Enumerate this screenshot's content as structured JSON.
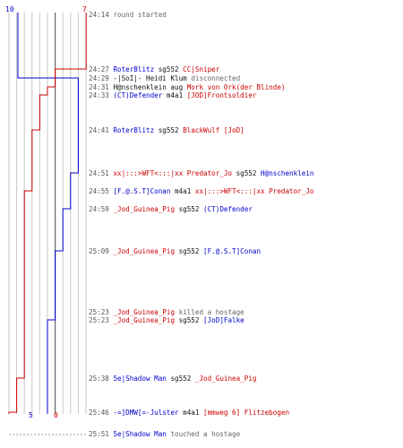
{
  "colors": {
    "blue_team": "#0000cc",
    "red_team": "#cc0000",
    "text": "#111111",
    "muted": "#666666"
  },
  "scores": {
    "blue_top": "10",
    "red_top": "7",
    "blue_bottom": "5",
    "red_bottom": "0"
  },
  "events": [
    {
      "time": "24:14",
      "parts": [
        {
          "text": "round started",
          "color": "muted"
        }
      ]
    },
    {
      "time": "24:27",
      "parts": [
        {
          "text": "RoterBlitz",
          "color": "blue"
        },
        {
          "text": " sg552 ",
          "color": "text"
        },
        {
          "text": "CC|Sniper",
          "color": "red"
        }
      ]
    },
    {
      "time": "24:29",
      "parts": [
        {
          "text": "-|SoI|- Heidi Klum",
          "color": "text"
        },
        {
          "text": " disconnected",
          "color": "muted"
        }
      ]
    },
    {
      "time": "24:31",
      "parts": [
        {
          "text": "H@nschenklein",
          "color": "text"
        },
        {
          "text": " aug ",
          "color": "text"
        },
        {
          "text": "Mork von Ork(der Blinde)",
          "color": "red"
        }
      ]
    },
    {
      "time": "24:33",
      "parts": [
        {
          "text": "(CT)Defender",
          "color": "blue"
        },
        {
          "text": " m4a1 ",
          "color": "text"
        },
        {
          "text": "[JOD]Frontsoldier",
          "color": "red"
        }
      ]
    },
    {
      "time": "24:41",
      "parts": [
        {
          "text": "RoterBlitz",
          "color": "blue"
        },
        {
          "text": " sg552 ",
          "color": "text"
        },
        {
          "text": "BlackWulf [JoD]",
          "color": "red"
        }
      ]
    },
    {
      "time": "24:51",
      "parts": [
        {
          "text": "xx|:::>WFT<:::|xx Predator_Jo",
          "color": "red"
        },
        {
          "text": " sg552 ",
          "color": "text"
        },
        {
          "text": "H@nschenklein",
          "color": "blue"
        }
      ]
    },
    {
      "time": "24:55",
      "parts": [
        {
          "text": "[F.@.S.T]Conan",
          "color": "blue"
        },
        {
          "text": " m4a1 ",
          "color": "text"
        },
        {
          "text": "xx|:::>WFT<:::|xx Predator_Jo",
          "color": "red"
        }
      ]
    },
    {
      "time": "24:59",
      "parts": [
        {
          "text": "_Jod_Guinea_Pig",
          "color": "red"
        },
        {
          "text": " sg552 ",
          "color": "text"
        },
        {
          "text": "(CT)Defender",
          "color": "blue"
        }
      ]
    },
    {
      "time": "25:09",
      "parts": [
        {
          "text": "_Jod_Guinea_Pig",
          "color": "red"
        },
        {
          "text": " sg552 ",
          "color": "text"
        },
        {
          "text": "[F.@.S.T]Conan",
          "color": "blue"
        }
      ]
    },
    {
      "time": "25:23",
      "parts": [
        {
          "text": "_Jod_Guinea_Pig",
          "color": "red"
        },
        {
          "text": " killed a hostage",
          "color": "muted"
        }
      ]
    },
    {
      "time": "25:23",
      "parts": [
        {
          "text": "_Jod_Guinea_Pig",
          "color": "red"
        },
        {
          "text": " sg552 ",
          "color": "text"
        },
        {
          "text": "[JoD]Falke",
          "color": "blue"
        }
      ]
    },
    {
      "time": "25:38",
      "parts": [
        {
          "text": "5e|Shadow Man",
          "color": "blue"
        },
        {
          "text": " sg552 ",
          "color": "text"
        },
        {
          "text": "_Jod_Guinea_Pig",
          "color": "red"
        }
      ]
    },
    {
      "time": "25:46",
      "parts": [
        {
          "text": "-=]DMW[=-Julster",
          "color": "blue"
        },
        {
          "text": " m4a1 ",
          "color": "text"
        },
        {
          "text": "[mmweg 6] Flitzebogen",
          "color": "red"
        }
      ]
    },
    {
      "time": "25:51",
      "parts": [
        {
          "text": "5e|Shadow Man",
          "color": "blue"
        },
        {
          "text": " touched a hostage",
          "color": "muted"
        }
      ]
    }
  ]
}
